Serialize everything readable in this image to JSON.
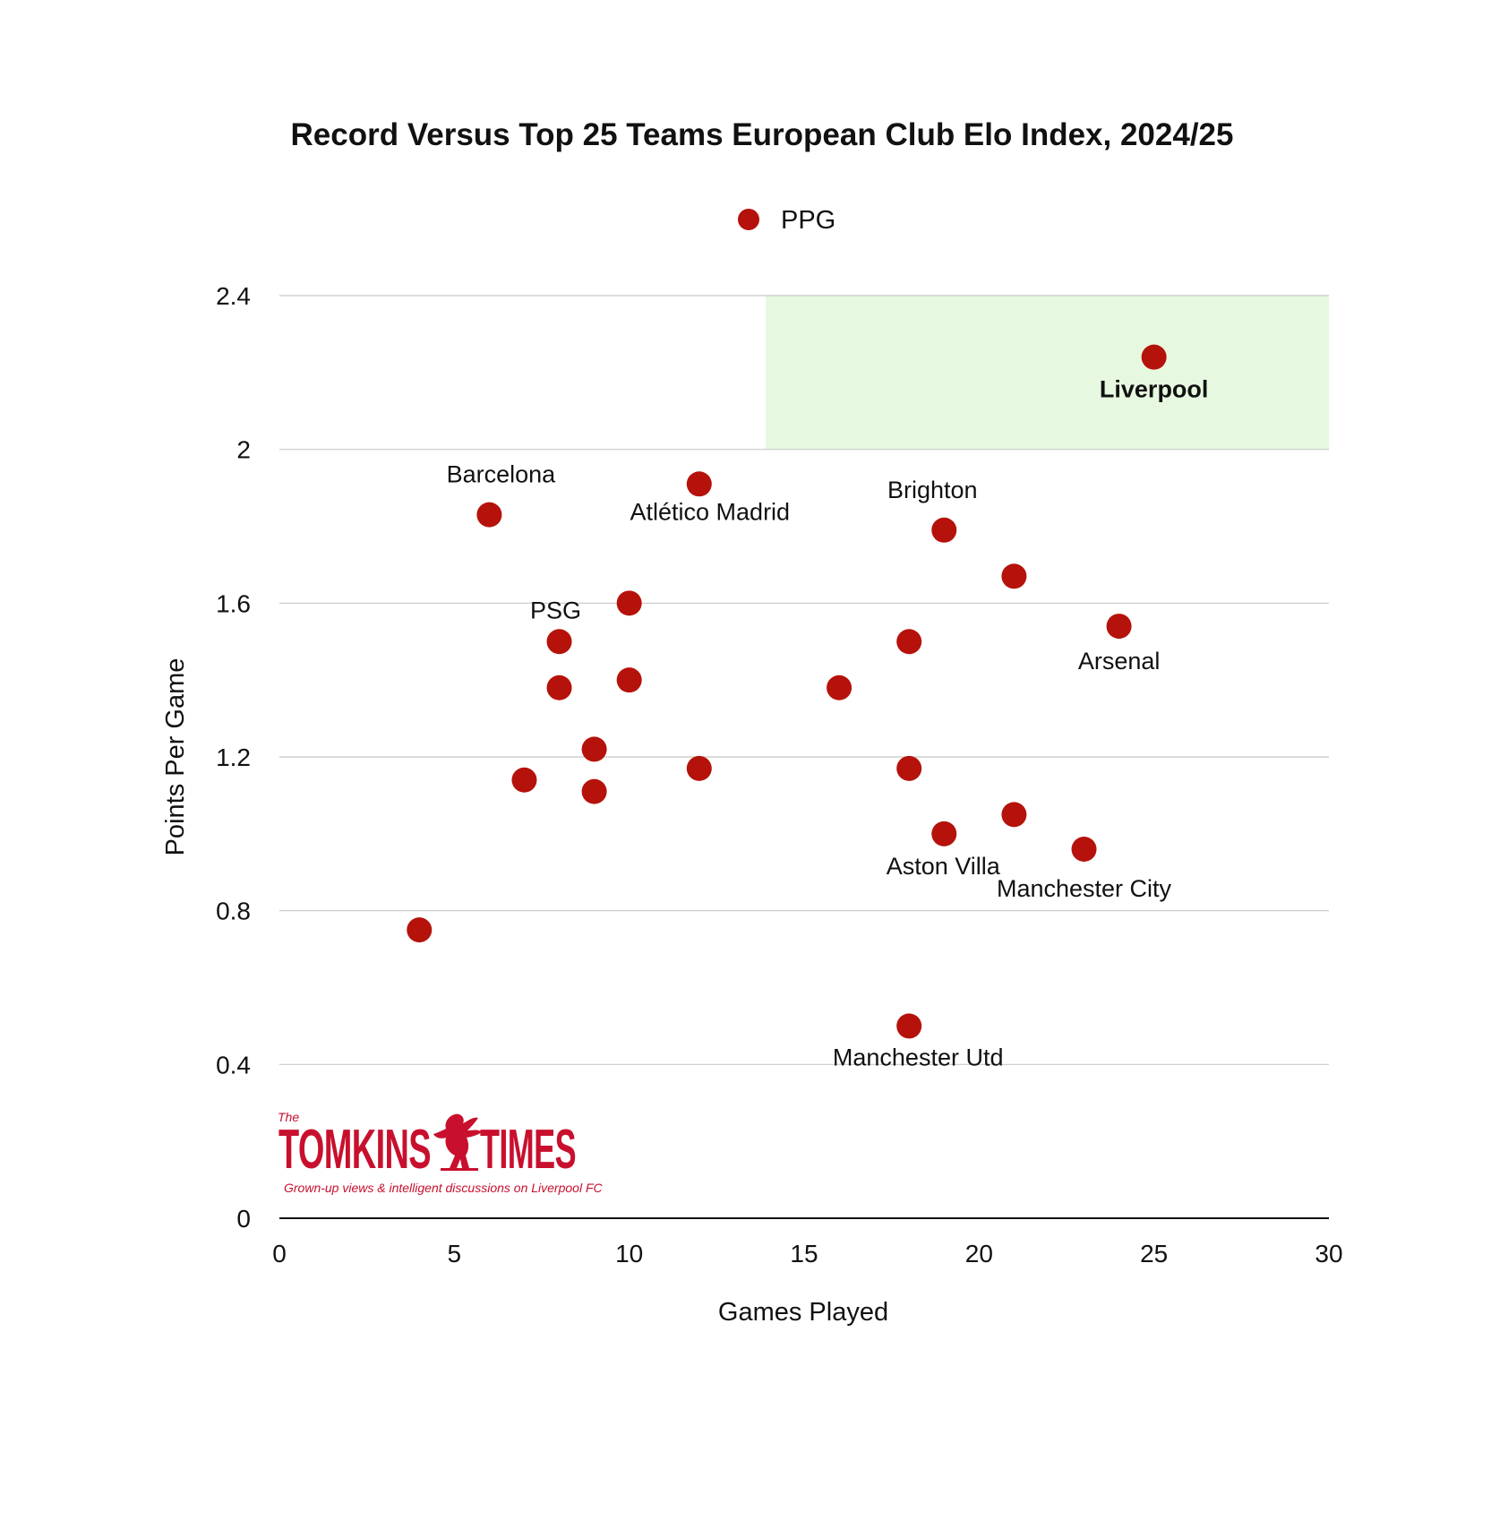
{
  "chart_data": {
    "type": "scatter",
    "title": "Record Versus Top 25 Teams European Club Elo Index, 2024/25",
    "xlabel": "Games Played",
    "ylabel": "Points Per Game",
    "xlim": [
      0,
      30
    ],
    "ylim": [
      0,
      2.4
    ],
    "x_ticks": [
      "0",
      "5",
      "10",
      "15",
      "20",
      "25",
      "30"
    ],
    "y_ticks": [
      "0",
      "0.4",
      "0.8",
      "1.2",
      "1.6",
      "2",
      "2.4"
    ],
    "grid": "horizontal",
    "legend_position": "top-center",
    "series": [
      {
        "name": "PPG",
        "color": "#b5120b",
        "points": [
          {
            "x": 25,
            "y": 2.24,
            "label": "Liverpool",
            "bold": true
          },
          {
            "x": 12,
            "y": 1.91,
            "label": "Atlético Madrid"
          },
          {
            "x": 6,
            "y": 1.83,
            "label": "Barcelona"
          },
          {
            "x": 19,
            "y": 1.79,
            "label": "Brighton"
          },
          {
            "x": 21,
            "y": 1.67
          },
          {
            "x": 10,
            "y": 1.6
          },
          {
            "x": 24,
            "y": 1.54,
            "label": "Arsenal"
          },
          {
            "x": 8,
            "y": 1.5,
            "label": "PSG"
          },
          {
            "x": 18,
            "y": 1.5
          },
          {
            "x": 10,
            "y": 1.4
          },
          {
            "x": 8,
            "y": 1.38
          },
          {
            "x": 16,
            "y": 1.38
          },
          {
            "x": 9,
            "y": 1.22
          },
          {
            "x": 12,
            "y": 1.17
          },
          {
            "x": 18,
            "y": 1.17
          },
          {
            "x": 7,
            "y": 1.14
          },
          {
            "x": 9,
            "y": 1.11
          },
          {
            "x": 21,
            "y": 1.05
          },
          {
            "x": 19,
            "y": 1.0,
            "label": "Aston Villa"
          },
          {
            "x": 23,
            "y": 0.96,
            "label": "Manchester City"
          },
          {
            "x": 4,
            "y": 0.75
          },
          {
            "x": 18,
            "y": 0.5,
            "label": "Manchester Utd"
          }
        ]
      }
    ],
    "highlight_region": {
      "x": [
        13.9,
        30
      ],
      "y": [
        2.0,
        2.4
      ],
      "color": "#e6f9e0"
    }
  },
  "logo": {
    "the": "The",
    "name_left": "TOMKINS",
    "name_right": "TIMES",
    "tagline": "Grown-up views & intelligent discussions on Liverpool FC"
  }
}
